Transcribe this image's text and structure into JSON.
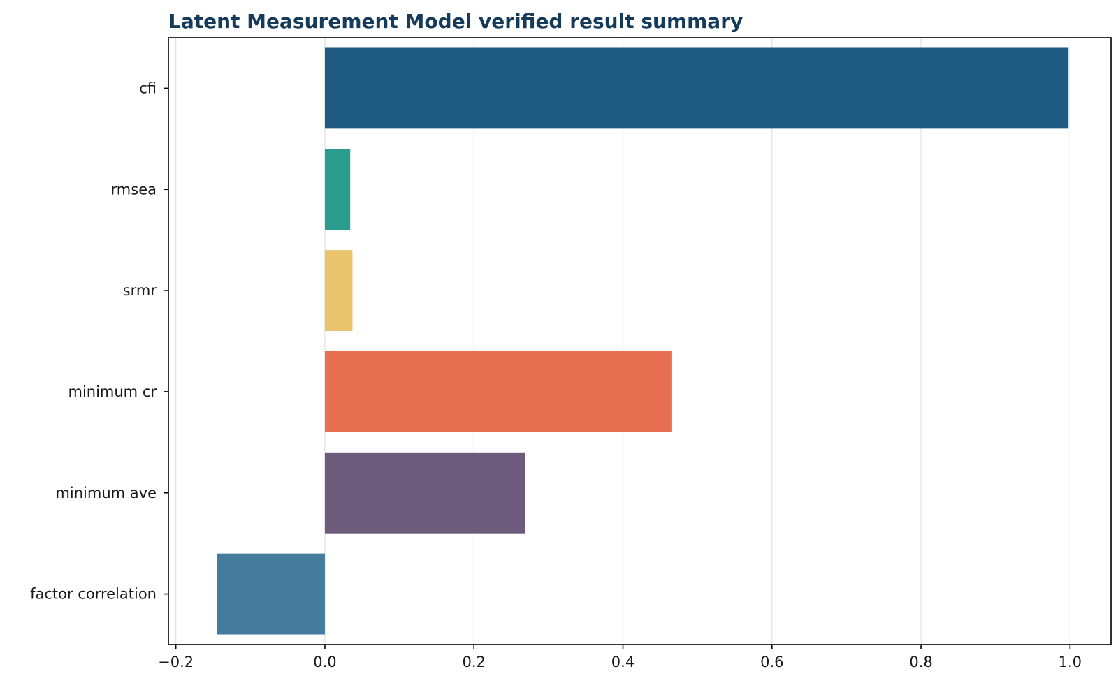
{
  "chart_data": {
    "type": "bar",
    "orientation": "horizontal",
    "title": "Latent Measurement Model verified result summary",
    "xlabel": "",
    "ylabel": "",
    "categories": [
      "cfi",
      "rmsea",
      "srmr",
      "minimum cr",
      "minimum ave",
      "factor correlation"
    ],
    "values": [
      0.998,
      0.034,
      0.037,
      0.466,
      0.269,
      -0.145
    ],
    "colors": [
      "#1f5b82",
      "#2a9d8f",
      "#e9c46a",
      "#e76f51",
      "#6c5b7b",
      "#457b9d"
    ],
    "xlim": [
      -0.21,
      1.055
    ],
    "xticks": [
      -0.2,
      0.0,
      0.2,
      0.4,
      0.6,
      0.8,
      1.0
    ],
    "xtick_labels": [
      "−0.2",
      "0.0",
      "0.2",
      "0.4",
      "0.6",
      "0.8",
      "1.0"
    ],
    "grid": "vertical",
    "legend": "none"
  }
}
